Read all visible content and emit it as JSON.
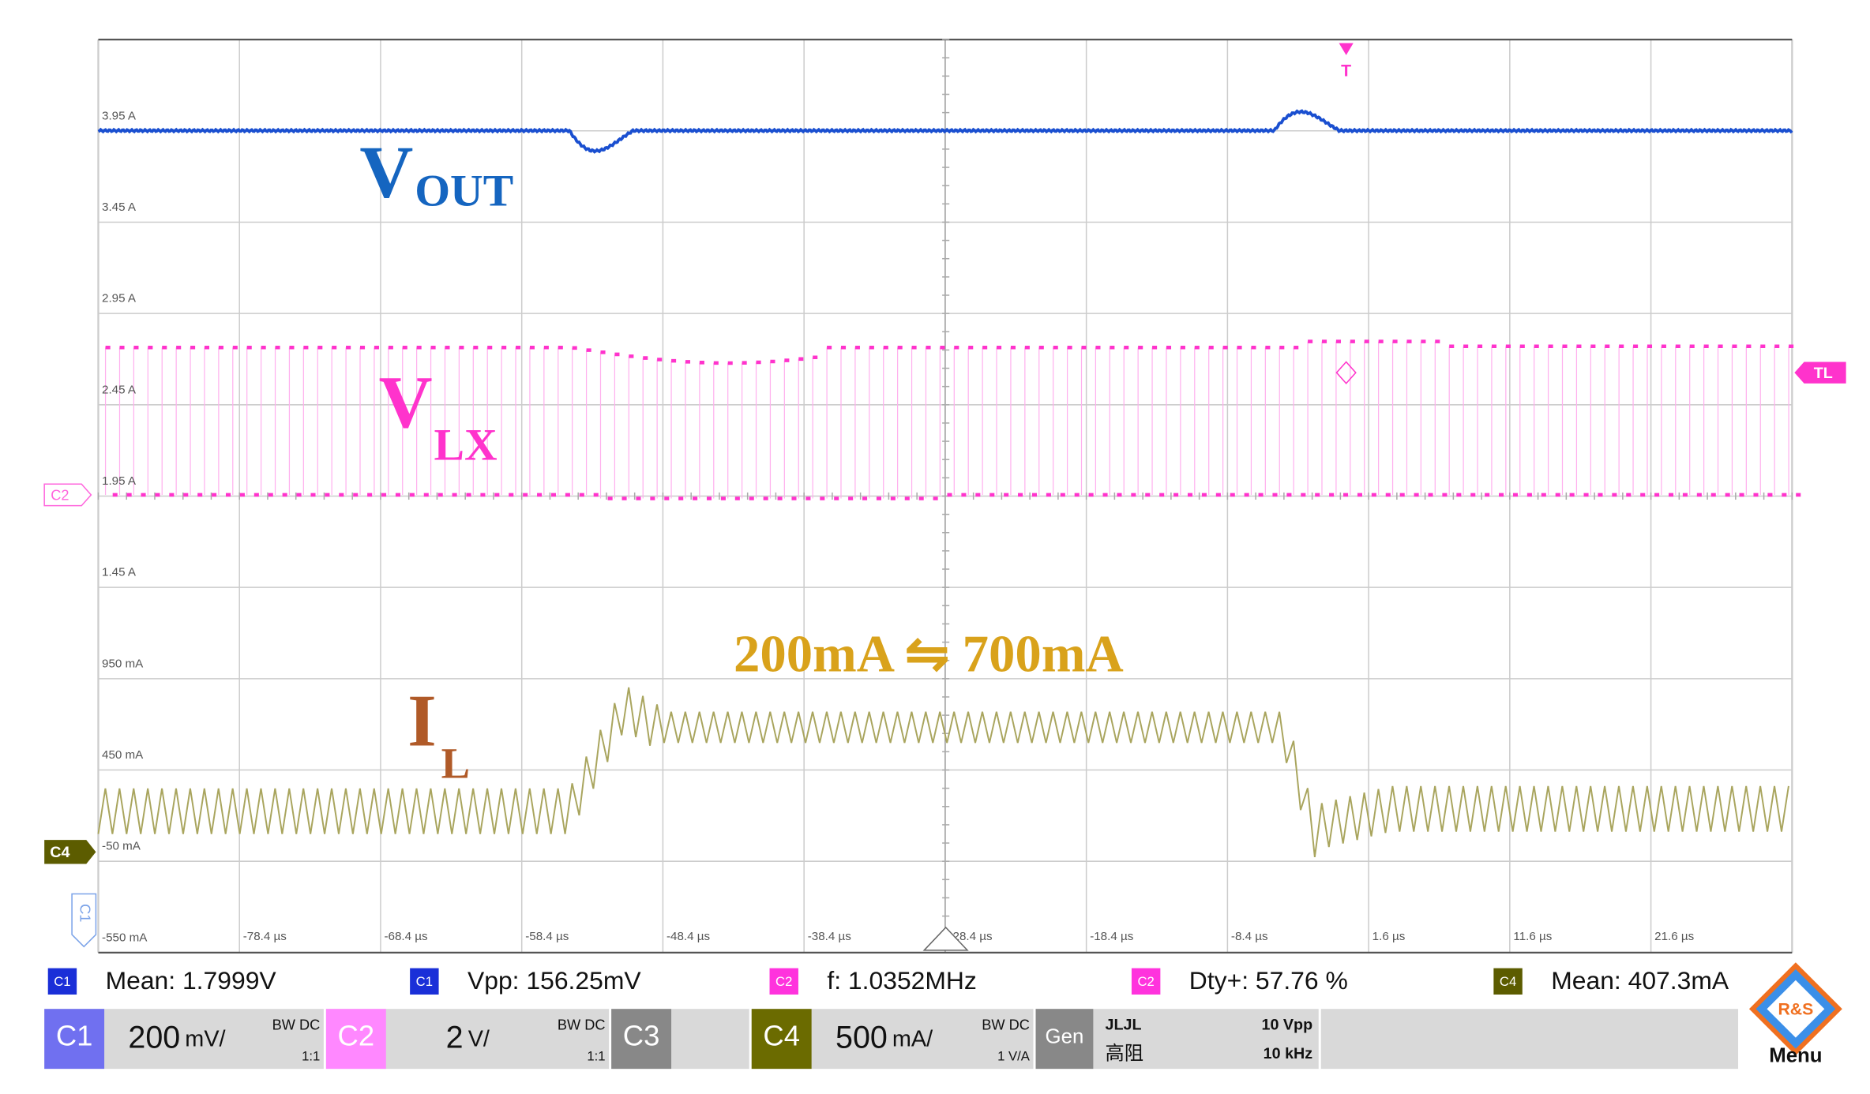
{
  "screen": {
    "y_labels": [
      "3.95 A",
      "3.45 A",
      "2.95 A",
      "2.45 A",
      "1.95 A",
      "1.45 A",
      "950 mA",
      "450 mA",
      "-50 mA",
      "-550 mA"
    ],
    "x_labels": [
      "-78.4 µs",
      "-68.4 µs",
      "-58.4 µs",
      "-48.4 µs",
      "-38.4 µs",
      "-28.4 µs",
      "-18.4 µs",
      "-8.4 µs",
      "1.6 µs",
      "11.6 µs",
      "21.6 µs"
    ],
    "annotations": {
      "vout": {
        "main": "V",
        "sub": "OUT"
      },
      "vlx": {
        "main": "V",
        "sub": "LX"
      },
      "il": {
        "main": "I",
        "sub": "L"
      },
      "step": "200mA ⇋ 700mA"
    },
    "markers": {
      "c2": "C2",
      "c4": "C4",
      "c1": "C1",
      "trigger": "T",
      "trigger_level": "TL"
    },
    "measurements": [
      {
        "channel": "C1",
        "text": "Mean: 1.7999V"
      },
      {
        "channel": "C1",
        "text": "Vpp: 156.25mV"
      },
      {
        "channel": "C2",
        "text": "f: 1.0352MHz"
      },
      {
        "channel": "C2",
        "text": "Dty+: 57.76 %"
      },
      {
        "channel": "C4",
        "text": "Mean: 407.3mA"
      }
    ],
    "channels": [
      {
        "name": "C1",
        "scale": "200",
        "unit": "mV/",
        "bw": "BW DC",
        "ratio": "1:1"
      },
      {
        "name": "C2",
        "scale": "2",
        "unit": "V/",
        "bw": "BW DC",
        "ratio": "1:1"
      },
      {
        "name": "C3"
      },
      {
        "name": "C4",
        "scale": "500",
        "unit": "mA/",
        "bw": "BW DC",
        "ratio": "1 V/A"
      }
    ],
    "generator": {
      "name": "Gen",
      "wave": "ЈLЈL",
      "mode": "高阻",
      "amplitude": "10 Vpp",
      "frequency": "10 kHz"
    },
    "menu": {
      "logo": "R&S",
      "label": "Menu"
    }
  }
}
